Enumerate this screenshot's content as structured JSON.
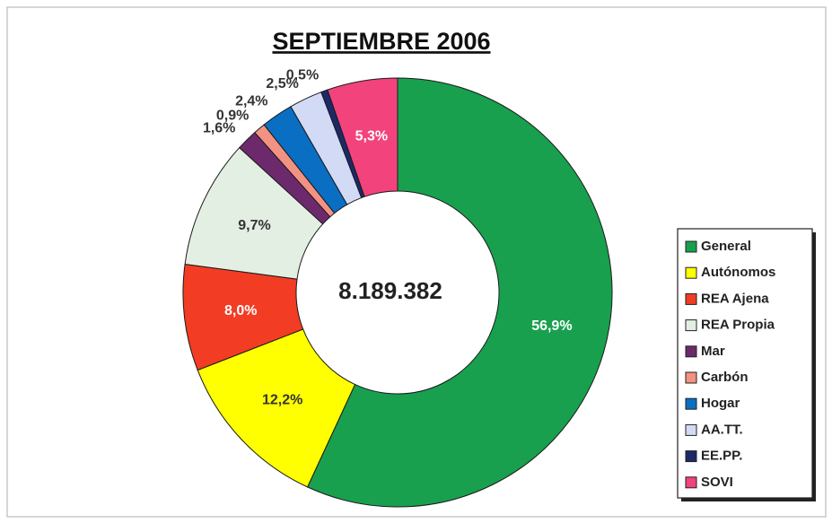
{
  "chart_data": {
    "type": "donut",
    "title": "SEPTIEMBRE 2006",
    "center_label": "8.189.382",
    "categories": [
      "General",
      "Autónomos",
      "REA Ajena",
      "REA Propia",
      "Mar",
      "Carbón",
      "Hogar",
      "AA.TT.",
      "EE.PP.",
      "SOVI"
    ],
    "values": [
      56.9,
      12.2,
      8.0,
      9.7,
      1.6,
      0.9,
      2.4,
      2.5,
      0.5,
      5.3
    ],
    "value_labels": [
      "56,9%",
      "12,2%",
      "8,0%",
      "9,7%",
      "1,6%",
      "0,9%",
      "2,4%",
      "2,5%",
      "0,5%",
      "5,3%"
    ],
    "colors": [
      "#18a04e",
      "#ffff00",
      "#f23c24",
      "#e4efe4",
      "#6c2a6c",
      "#f39282",
      "#0a6fc2",
      "#d2daf6",
      "#1c2a6a",
      "#f2437c"
    ],
    "legend": "right"
  }
}
